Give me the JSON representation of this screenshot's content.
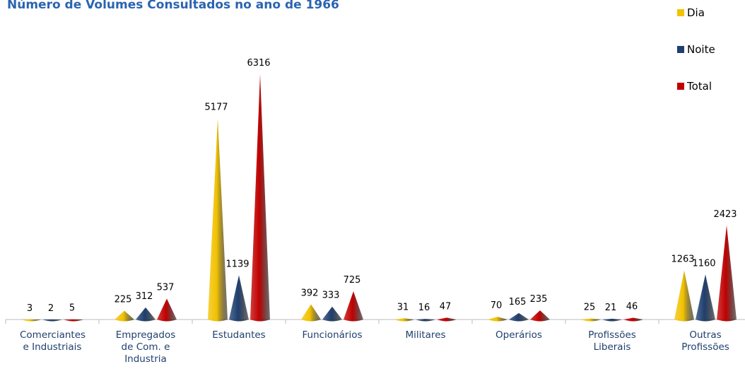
{
  "chart_data": {
    "type": "cone",
    "title": "Número de Volumes Consultados no ano de 1966",
    "categories": [
      "Comerciantes e Industriais",
      "Empregados de Com. e Industria",
      "Estudantes",
      "Funcionários",
      "Militares",
      "Operários",
      "Profissões Liberais",
      "Outras Profissões"
    ],
    "series": [
      {
        "name": "Dia",
        "color": "#f2c200",
        "values": [
          3,
          225,
          5177,
          392,
          31,
          70,
          25,
          1263
        ]
      },
      {
        "name": "Noite",
        "color": "#1f3f6e",
        "values": [
          2,
          312,
          1139,
          333,
          16,
          165,
          21,
          1160
        ]
      },
      {
        "name": "Total",
        "color": "#c00000",
        "values": [
          5,
          537,
          6316,
          725,
          47,
          235,
          46,
          2423
        ]
      }
    ],
    "legend": "top-right"
  }
}
